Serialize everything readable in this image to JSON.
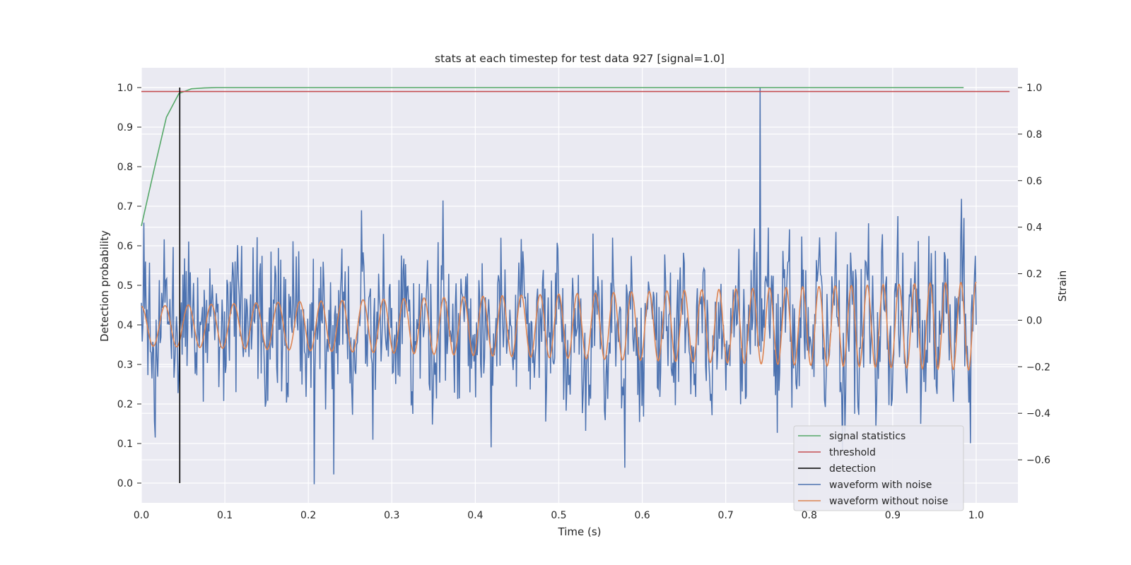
{
  "chart_data": {
    "type": "line",
    "title": "stats at each timestep for test data 927 [signal=1.0]",
    "xlabel": "Time (s)",
    "ylabel": "Detection probability",
    "y2label": "Strain",
    "xlim": [
      0.0,
      1.05
    ],
    "ylim": [
      -0.05,
      1.05
    ],
    "y2lim": [
      -0.785,
      1.085
    ],
    "xticks": [
      "0.0",
      "0.1",
      "0.2",
      "0.3",
      "0.4",
      "0.5",
      "0.6",
      "0.7",
      "0.8",
      "0.9",
      "1.0"
    ],
    "yticks": [
      "0.0",
      "0.1",
      "0.2",
      "0.3",
      "0.4",
      "0.5",
      "0.6",
      "0.7",
      "0.8",
      "0.9",
      "1.0"
    ],
    "y2ticks": [
      "−0.6",
      "−0.4",
      "−0.2",
      "0.0",
      "0.2",
      "0.4",
      "0.6",
      "0.8",
      "1.0"
    ],
    "grid": true,
    "legend_position": "lower-right",
    "colors": {
      "background": "#eaeaf2",
      "grid": "#ffffff",
      "signal_statistics": "#55a868",
      "threshold": "#c44e52",
      "detection": "#000000",
      "waveform_with_noise": "#4c72b0",
      "waveform_without_noise": "#dd8452"
    },
    "series": [
      {
        "name": "signal statistics",
        "axis": "left",
        "x": [
          0.0,
          0.015,
          0.03,
          0.045,
          0.06,
          0.075,
          0.09,
          0.2,
          0.5,
          0.8,
          0.985
        ],
        "values": [
          0.65,
          0.79,
          0.925,
          0.985,
          0.997,
          0.999,
          1.0,
          1.0,
          1.0,
          1.0,
          1.0
        ]
      },
      {
        "name": "threshold",
        "axis": "left",
        "x": [
          0.0,
          1.04
        ],
        "values": [
          0.99,
          0.99
        ]
      },
      {
        "name": "detection",
        "axis": "left",
        "x": [
          0.046,
          0.046
        ],
        "values": [
          0.0,
          1.0
        ]
      },
      {
        "name": "waveform with noise",
        "axis": "right",
        "x_start": 0.0,
        "x_end": 1.0,
        "samples": 1024,
        "values_note_visible_extremes": {
          "max": 1.0,
          "max_at": 0.741,
          "min": -0.705,
          "min_at": 0.207
        }
      },
      {
        "name": "waveform without noise",
        "axis": "right",
        "x_start": 0.0,
        "x_end": 1.0,
        "frequency_start_hz": 35,
        "frequency_end_hz": 55,
        "amplitude_start": 0.085,
        "amplitude_end": 0.19
      }
    ],
    "legend": [
      "signal statistics",
      "threshold",
      "detection",
      "waveform with noise",
      "waveform without noise"
    ]
  }
}
